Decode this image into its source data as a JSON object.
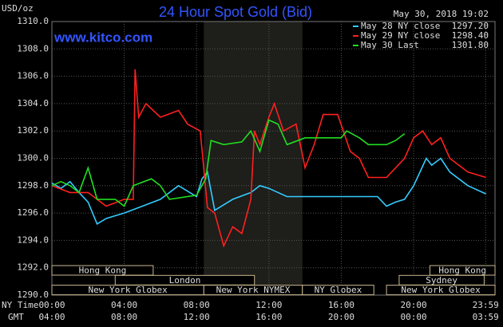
{
  "chart_data": {
    "type": "line",
    "title": "24 Hour Spot Gold (Bid)",
    "y_unit": "USD/oz",
    "watermark": "www.kitco.com",
    "timestamp": "May 30, 2018 19:02",
    "x_axis_label": "NY Time",
    "x2_axis_label": "GMT",
    "xlim": [
      0,
      24.5
    ],
    "xticks": [
      {
        "value": 0,
        "label": "00:00"
      },
      {
        "value": 4,
        "label": "04:00"
      },
      {
        "value": 8,
        "label": "08:00"
      },
      {
        "value": 12,
        "label": "12:00"
      },
      {
        "value": 16,
        "label": "16:00"
      },
      {
        "value": 20,
        "label": "20:00"
      },
      {
        "value": 23.98,
        "label": "23:59"
      }
    ],
    "x2ticks": [
      "04:00",
      "08:00",
      "12:00",
      "16:00",
      "20:00",
      "00:00",
      "03:59"
    ],
    "ylim": [
      1290,
      1310
    ],
    "yticks": [
      {
        "value": 1290,
        "label": "1290.0"
      },
      {
        "value": 1292,
        "label": "1292.0"
      },
      {
        "value": 1294,
        "label": "1294.0"
      },
      {
        "value": 1296,
        "label": "1296.0"
      },
      {
        "value": 1298,
        "label": "1298.0"
      },
      {
        "value": 1300,
        "label": "1300.0"
      },
      {
        "value": 1302,
        "label": "1302.0"
      },
      {
        "value": 1304,
        "label": "1304.0"
      },
      {
        "value": 1306,
        "label": "1306.0"
      },
      {
        "value": 1308,
        "label": "1308.0"
      },
      {
        "value": 1310,
        "label": "1310.0"
      }
    ],
    "grid": true,
    "sessions": [
      {
        "name": "Hong Kong",
        "start": 0,
        "end": 5.6,
        "row": 0
      },
      {
        "name": "London",
        "start": 3.5,
        "end": 11.2,
        "row": 1
      },
      {
        "name": "New York Globex",
        "start": 0,
        "end": 8.4,
        "row": 2
      },
      {
        "name": "New York NYMEX",
        "start": 8.4,
        "end": 13.85,
        "row": 2,
        "shaded": true
      },
      {
        "name": "NY Globex",
        "start": 13.85,
        "end": 17.8,
        "row": 2
      },
      {
        "name": "Hong Kong",
        "start": 20.9,
        "end": 24.5,
        "row": 0
      },
      {
        "name": "Sydney",
        "start": 19.2,
        "end": 23.9,
        "row": 1
      },
      {
        "name": "New York Globex",
        "start": 18.5,
        "end": 24.5,
        "row": 2
      }
    ],
    "series": [
      {
        "name": "May 28 NY close",
        "close": "1297.20",
        "color": "#33ccff",
        "x": [
          0,
          0.5,
          1,
          1.5,
          2,
          2.5,
          3,
          3.5,
          4,
          5,
          6,
          7,
          8,
          8.3,
          8.6,
          9,
          10,
          11,
          11.5,
          12,
          13,
          14,
          15,
          16,
          17,
          18,
          18.5,
          19,
          19.5,
          20,
          20.7,
          21,
          21.5,
          22,
          23,
          24
        ],
        "values": [
          1298.2,
          1297.8,
          1298.3,
          1297.5,
          1296.8,
          1295.2,
          1295.6,
          1295.8,
          1296.0,
          1296.5,
          1297.0,
          1298.0,
          1297.2,
          1298.5,
          1299.0,
          1296.2,
          1297.0,
          1297.5,
          1298.0,
          1297.8,
          1297.2,
          1297.2,
          1297.2,
          1297.2,
          1297.2,
          1297.2,
          1296.5,
          1296.8,
          1297.0,
          1298.0,
          1300.0,
          1299.5,
          1300.0,
          1299.0,
          1298.0,
          1297.4
        ]
      },
      {
        "name": "May 29 NY close",
        "close": "1298.40",
        "color": "#ff2020",
        "x": [
          0,
          1,
          2,
          3,
          4,
          4.5,
          4.6,
          4.8,
          5.2,
          6,
          7,
          7.5,
          8.2,
          8.6,
          9,
          9.5,
          10,
          10.5,
          11,
          11.2,
          11.5,
          12,
          12.3,
          12.8,
          13.5,
          14,
          14.5,
          15,
          15.8,
          16.5,
          17,
          17.5,
          18.5,
          19.5,
          20,
          20.5,
          21,
          21.5,
          22,
          23,
          24
        ],
        "values": [
          1298.0,
          1297.5,
          1297.5,
          1296.5,
          1297.0,
          1297.0,
          1306.5,
          1303.0,
          1304.0,
          1303.0,
          1303.5,
          1302.5,
          1302.0,
          1296.4,
          1296.0,
          1293.6,
          1295.0,
          1294.5,
          1297.0,
          1302.0,
          1301.0,
          1303.0,
          1304.0,
          1302.0,
          1302.5,
          1299.3,
          1301.0,
          1303.2,
          1303.2,
          1300.5,
          1300.0,
          1298.6,
          1298.6,
          1300.0,
          1301.5,
          1302.0,
          1301.0,
          1301.5,
          1300.0,
          1299.0,
          1298.6
        ]
      },
      {
        "name": "May 30 Last",
        "close": "1301.80",
        "color": "#22dd22",
        "x": [
          0,
          0.5,
          1,
          1.5,
          2,
          2.5,
          3.5,
          4,
          4.5,
          5.5,
          6,
          6.5,
          8,
          8.5,
          8.8,
          9.5,
          10.5,
          11,
          11.5,
          12,
          12.5,
          13,
          14,
          15,
          16,
          16.3,
          17,
          17.5,
          18.5,
          19,
          19.5
        ],
        "values": [
          1298.0,
          1298.3,
          1298.0,
          1297.5,
          1299.3,
          1297.0,
          1297.0,
          1296.5,
          1298.0,
          1298.5,
          1298.0,
          1297.0,
          1297.3,
          1298.5,
          1301.3,
          1301.0,
          1301.2,
          1302.0,
          1300.5,
          1302.8,
          1302.5,
          1301.0,
          1301.5,
          1301.5,
          1301.5,
          1302.0,
          1301.5,
          1301.0,
          1301.0,
          1301.3,
          1301.8
        ]
      }
    ]
  }
}
